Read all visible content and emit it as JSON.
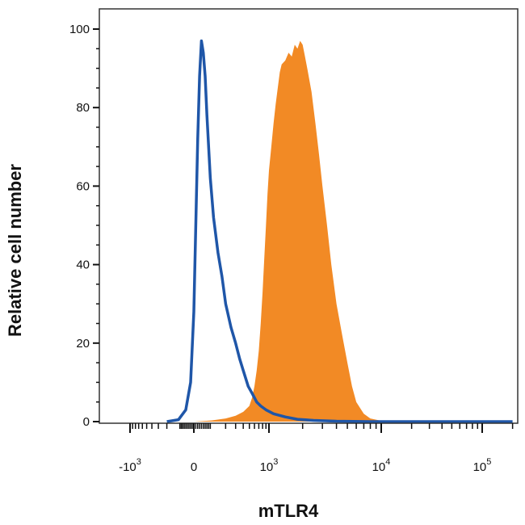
{
  "chart_data": {
    "type": "area",
    "xlabel": "mTLR4",
    "ylabel": "Relative cell number",
    "x_scale": "biexponential",
    "xlim": [
      -2000,
      200000
    ],
    "ylim": [
      0,
      104
    ],
    "y_ticks": [
      {
        "value": 0,
        "label": "0"
      },
      {
        "value": 20,
        "label": "20"
      },
      {
        "value": 40,
        "label": "40"
      },
      {
        "value": 60,
        "label": "60"
      },
      {
        "value": 80,
        "label": "80"
      },
      {
        "value": 100,
        "label": "100"
      }
    ],
    "x_ticks": [
      {
        "value": -1000,
        "base": "-10",
        "exp": "3"
      },
      {
        "value": 0,
        "base": "0",
        "exp": ""
      },
      {
        "value": 1000,
        "base": "10",
        "exp": "3"
      },
      {
        "value": 10000,
        "base": "10",
        "exp": "4"
      },
      {
        "value": 100000,
        "base": "10",
        "exp": "5"
      }
    ],
    "series": [
      {
        "style": "filled",
        "color": "#f28a25",
        "points": [
          [
            -200,
            0
          ],
          [
            0,
            0
          ],
          [
            100,
            0.3
          ],
          [
            200,
            0.8
          ],
          [
            300,
            1.5
          ],
          [
            400,
            2.5
          ],
          [
            500,
            4
          ],
          [
            550,
            6
          ],
          [
            600,
            9
          ],
          [
            650,
            13
          ],
          [
            700,
            18
          ],
          [
            750,
            25
          ],
          [
            800,
            33
          ],
          [
            850,
            42
          ],
          [
            900,
            50
          ],
          [
            950,
            58
          ],
          [
            1000,
            64
          ],
          [
            1050,
            70
          ],
          [
            1100,
            76
          ],
          [
            1150,
            81
          ],
          [
            1200,
            85
          ],
          [
            1250,
            89
          ],
          [
            1300,
            91
          ],
          [
            1400,
            92
          ],
          [
            1500,
            94
          ],
          [
            1600,
            93
          ],
          [
            1700,
            96
          ],
          [
            1800,
            95
          ],
          [
            1900,
            97
          ],
          [
            2000,
            96
          ],
          [
            2100,
            93
          ],
          [
            2200,
            90
          ],
          [
            2400,
            84
          ],
          [
            2600,
            76
          ],
          [
            2800,
            68
          ],
          [
            3000,
            60
          ],
          [
            3300,
            50
          ],
          [
            3600,
            40
          ],
          [
            4000,
            30
          ],
          [
            4500,
            22
          ],
          [
            5000,
            15
          ],
          [
            5500,
            9
          ],
          [
            6000,
            5
          ],
          [
            7000,
            2
          ],
          [
            8000,
            0.8
          ],
          [
            10000,
            0.2
          ],
          [
            12000,
            0
          ]
        ]
      },
      {
        "style": "line",
        "color": "#1f56a8",
        "points": [
          [
            -200,
            0
          ],
          [
            -100,
            0.5
          ],
          [
            -50,
            3
          ],
          [
            -20,
            10
          ],
          [
            0,
            28
          ],
          [
            10,
            50
          ],
          [
            20,
            72
          ],
          [
            30,
            88
          ],
          [
            40,
            97
          ],
          [
            50,
            94
          ],
          [
            60,
            88
          ],
          [
            70,
            78
          ],
          [
            90,
            62
          ],
          [
            110,
            52
          ],
          [
            140,
            43
          ],
          [
            170,
            37
          ],
          [
            200,
            30
          ],
          [
            250,
            24
          ],
          [
            300,
            20
          ],
          [
            350,
            16
          ],
          [
            400,
            13
          ],
          [
            480,
            9
          ],
          [
            560,
            7
          ],
          [
            650,
            5
          ],
          [
            750,
            4
          ],
          [
            900,
            3
          ],
          [
            1100,
            2
          ],
          [
            1400,
            1.2
          ],
          [
            1800,
            0.6
          ],
          [
            2500,
            0.3
          ],
          [
            4000,
            0.1
          ],
          [
            8000,
            0
          ],
          [
            200000,
            0
          ]
        ]
      }
    ]
  }
}
